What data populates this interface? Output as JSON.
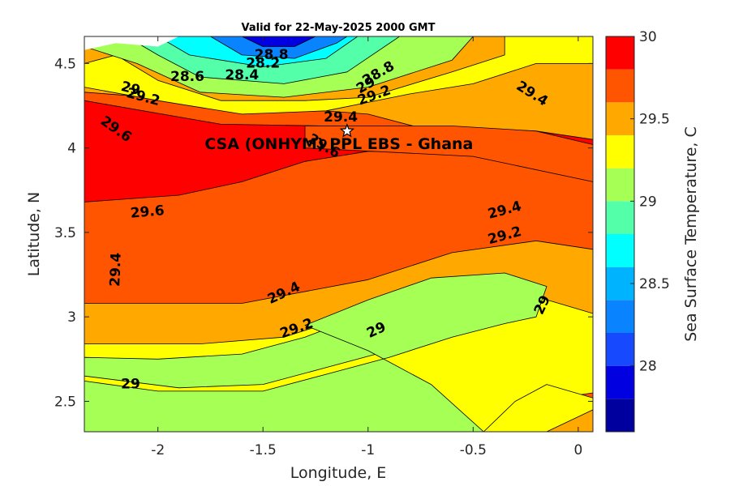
{
  "chart_data": {
    "type": "heatmap",
    "title": "Valid for 22-May-2025 2000 GMT",
    "xlabel": "Longitude, E",
    "ylabel": "Latitude, N",
    "xlim": [
      -2.35,
      0.07
    ],
    "ylim": [
      2.32,
      4.66
    ],
    "x_ticks": [
      -2,
      -1.5,
      -1,
      -0.5,
      0
    ],
    "x_tick_labels": [
      "-2",
      "-1.5",
      "-1",
      "-0.5",
      "0"
    ],
    "y_ticks": [
      2.5,
      3,
      3.5,
      4,
      4.5
    ],
    "y_tick_labels": [
      "2.5",
      "3",
      "3.5",
      "4",
      "4.5"
    ],
    "colorbar": {
      "label": "Sea Surface Temperature, C",
      "range": [
        27.6,
        30.0
      ],
      "step": 0.2,
      "ticks": [
        28,
        28.5,
        29,
        29.5,
        30
      ],
      "tick_labels": [
        "28",
        "28.5",
        "29",
        "29.5",
        "30"
      ],
      "colors": [
        "#00009f",
        "#0000e1",
        "#1749ff",
        "#0a83ff",
        "#00b3ff",
        "#00ffff",
        "#53ffa8",
        "#a5ff55",
        "#ffff00",
        "#ffa800",
        "#ff5400",
        "#ff0000",
        "#b00000"
      ]
    },
    "contour_bands": [
      {
        "level": 29.4,
        "color": "#ffa800",
        "region": [
          [
            -2.35,
            4.66
          ],
          [
            0.07,
            4.66
          ],
          [
            0.07,
            3.8
          ],
          [
            -1.0,
            4.18
          ],
          [
            -2.35,
            4.3
          ]
        ]
      },
      {
        "level": 29.6,
        "color": "#ff5400",
        "region": [
          [
            -2.35,
            4.33
          ],
          [
            -1.0,
            4.2
          ],
          [
            0.07,
            3.85
          ],
          [
            0.07,
            3.38
          ],
          [
            -0.2,
            3.42
          ],
          [
            -0.6,
            3.35
          ],
          [
            -1.0,
            3.2
          ],
          [
            -1.6,
            3.05
          ],
          [
            -2.35,
            3.05
          ]
        ]
      },
      {
        "level": 29.8,
        "color": "#ff0000",
        "region": [
          [
            -2.35,
            4.28
          ],
          [
            -1.7,
            4.14
          ],
          [
            -1.2,
            4.13
          ],
          [
            -0.6,
            4.12
          ],
          [
            -0.2,
            4.1
          ],
          [
            0.07,
            4.05
          ],
          [
            0.07,
            3.8
          ],
          [
            -0.5,
            3.98
          ],
          [
            -1.0,
            3.98
          ],
          [
            -1.3,
            3.92
          ],
          [
            -1.6,
            3.8
          ],
          [
            -1.9,
            3.72
          ],
          [
            -2.35,
            3.68
          ]
        ]
      },
      {
        "level": 29.6,
        "color": "#ff5400",
        "region": [
          [
            -1.3,
            4.13
          ],
          [
            -0.6,
            4.13
          ],
          [
            -0.2,
            4.1
          ],
          [
            0.07,
            4.02
          ],
          [
            0.07,
            3.8
          ],
          [
            -0.5,
            3.95
          ],
          [
            -1.3,
            4.0
          ]
        ]
      },
      {
        "level": 29.2,
        "color": "#ffff00",
        "region": [
          [
            -2.35,
            4.5
          ],
          [
            -2.2,
            4.55
          ],
          [
            -2.0,
            4.4
          ],
          [
            -1.7,
            4.28
          ],
          [
            -1.3,
            4.28
          ],
          [
            -1.0,
            4.3
          ],
          [
            -0.6,
            4.45
          ],
          [
            -0.35,
            4.55
          ],
          [
            -0.35,
            4.66
          ],
          [
            0.07,
            4.66
          ],
          [
            0.07,
            4.5
          ],
          [
            -0.2,
            4.5
          ],
          [
            -0.5,
            4.38
          ],
          [
            -0.8,
            4.32
          ],
          [
            -1.2,
            4.22
          ],
          [
            -1.6,
            4.2
          ],
          [
            -2.0,
            4.28
          ],
          [
            -2.35,
            4.36
          ]
        ]
      },
      {
        "level": 29.0,
        "color": "#a5ff55",
        "region": [
          [
            -2.35,
            4.6
          ],
          [
            -2.1,
            4.5
          ],
          [
            -1.8,
            4.33
          ],
          [
            -1.4,
            4.3
          ],
          [
            -1.0,
            4.36
          ],
          [
            -0.6,
            4.52
          ],
          [
            -0.5,
            4.66
          ],
          [
            -2.35,
            4.66
          ]
        ]
      },
      {
        "level": 28.6,
        "color": "#53ffa8",
        "region": [
          [
            -2.15,
            4.66
          ],
          [
            -2.0,
            4.55
          ],
          [
            -1.8,
            4.42
          ],
          [
            -1.4,
            4.38
          ],
          [
            -1.1,
            4.45
          ],
          [
            -0.85,
            4.66
          ]
        ]
      },
      {
        "level": 28.4,
        "color": "#00ffff",
        "region": [
          [
            -2.0,
            4.66
          ],
          [
            -1.85,
            4.55
          ],
          [
            -1.5,
            4.48
          ],
          [
            -1.2,
            4.53
          ],
          [
            -1.05,
            4.66
          ]
        ]
      },
      {
        "level": 28.2,
        "color": "#0a83ff",
        "region": [
          [
            -1.75,
            4.66
          ],
          [
            -1.6,
            4.55
          ],
          [
            -1.35,
            4.53
          ],
          [
            -1.15,
            4.62
          ],
          [
            -1.1,
            4.66
          ]
        ]
      },
      {
        "level": 28.0,
        "color": "#0000e1",
        "region": [
          [
            -1.6,
            4.66
          ],
          [
            -1.5,
            4.6
          ],
          [
            -1.35,
            4.6
          ],
          [
            -1.25,
            4.66
          ]
        ]
      },
      {
        "level": 29.4,
        "color": "#ffa800",
        "region": [
          [
            -2.35,
            3.08
          ],
          [
            -1.6,
            3.08
          ],
          [
            -1.0,
            3.22
          ],
          [
            -0.6,
            3.38
          ],
          [
            -0.2,
            3.45
          ],
          [
            0.07,
            3.4
          ],
          [
            0.07,
            3.0
          ],
          [
            -0.2,
            3.1
          ],
          [
            -0.5,
            3.16
          ],
          [
            -0.8,
            3.12
          ],
          [
            -1.1,
            2.98
          ],
          [
            -1.4,
            2.86
          ],
          [
            -1.8,
            2.82
          ],
          [
            -2.35,
            2.82
          ]
        ]
      },
      {
        "level": 29.2,
        "color": "#ffff00",
        "region": [
          [
            -2.35,
            2.84
          ],
          [
            -1.8,
            2.84
          ],
          [
            -1.4,
            2.88
          ],
          [
            -1.1,
            3.0
          ],
          [
            -0.8,
            3.15
          ],
          [
            -0.5,
            3.2
          ],
          [
            -0.2,
            3.12
          ],
          [
            0.07,
            3.02
          ],
          [
            0.07,
            2.55
          ],
          [
            -0.2,
            2.5
          ],
          [
            -0.4,
            2.32
          ],
          [
            -2.35,
            2.32
          ]
        ]
      },
      {
        "level": 29.0,
        "color": "#a5ff55",
        "region": [
          [
            -2.35,
            2.65
          ],
          [
            -1.9,
            2.58
          ],
          [
            -1.5,
            2.6
          ],
          [
            -1.2,
            2.7
          ],
          [
            -0.9,
            2.8
          ],
          [
            -0.6,
            2.93
          ],
          [
            -0.3,
            3.04
          ],
          [
            -0.18,
            3.12
          ],
          [
            -0.2,
            3.18
          ],
          [
            -0.4,
            3.2
          ],
          [
            -0.7,
            3.15
          ],
          [
            -1.0,
            3.02
          ],
          [
            -1.3,
            2.88
          ],
          [
            -1.6,
            2.78
          ],
          [
            -2.0,
            2.75
          ],
          [
            -2.35,
            2.76
          ]
        ]
      },
      {
        "level": 29.0,
        "color": "#a5ff55",
        "region": [
          [
            -2.35,
            2.32
          ],
          [
            -2.35,
            2.62
          ],
          [
            -2.0,
            2.56
          ],
          [
            -1.5,
            2.56
          ],
          [
            -1.2,
            2.66
          ],
          [
            -0.9,
            2.76
          ],
          [
            -0.6,
            2.88
          ],
          [
            -0.35,
            2.96
          ],
          [
            -0.2,
            3.0
          ],
          [
            -0.15,
            3.18
          ],
          [
            -0.35,
            3.26
          ],
          [
            -0.7,
            3.23
          ],
          [
            -1.0,
            3.1
          ],
          [
            -1.3,
            2.95
          ],
          [
            -1.0,
            2.8
          ],
          [
            -0.7,
            2.6
          ],
          [
            -0.45,
            2.32
          ]
        ]
      },
      {
        "level": 29.2,
        "color": "#ffff00",
        "region": [
          [
            -0.45,
            2.32
          ],
          [
            -0.3,
            2.5
          ],
          [
            -0.15,
            2.6
          ],
          [
            0.07,
            2.52
          ],
          [
            0.07,
            2.32
          ]
        ]
      },
      {
        "level": 29.4,
        "color": "#ffa800",
        "region": [
          [
            -0.15,
            2.32
          ],
          [
            0.07,
            2.45
          ],
          [
            0.07,
            2.32
          ]
        ]
      }
    ],
    "blank_region": [
      [
        -2.35,
        4.66
      ],
      [
        -2.35,
        4.58
      ],
      [
        -2.2,
        4.62
      ],
      [
        -2.0,
        4.6
      ],
      [
        -1.9,
        4.66
      ]
    ],
    "contour_labels": [
      {
        "text": "28.8",
        "x": -1.46,
        "y": 4.55,
        "angle": 0
      },
      {
        "text": "28.2",
        "x": -1.5,
        "y": 4.5,
        "angle": 0
      },
      {
        "text": "28.6",
        "x": -1.86,
        "y": 4.42,
        "angle": 0
      },
      {
        "text": "28.4",
        "x": -1.6,
        "y": 4.43,
        "angle": 0
      },
      {
        "text": "28.8",
        "x": -0.95,
        "y": 4.44,
        "angle": -30
      },
      {
        "text": "29",
        "x": -1.01,
        "y": 4.37,
        "angle": -30
      },
      {
        "text": "29.2",
        "x": -0.97,
        "y": 4.31,
        "angle": -20
      },
      {
        "text": "29",
        "x": -2.13,
        "y": 4.35,
        "angle": 15
      },
      {
        "text": "29.2",
        "x": -2.07,
        "y": 4.3,
        "angle": 15
      },
      {
        "text": "29.4",
        "x": -1.13,
        "y": 4.18,
        "angle": 0
      },
      {
        "text": "29.4",
        "x": -0.22,
        "y": 4.32,
        "angle": 32
      },
      {
        "text": "29.6",
        "x": -2.2,
        "y": 4.11,
        "angle": 35
      },
      {
        "text": "29.6",
        "x": -1.21,
        "y": 4.01,
        "angle": 30
      },
      {
        "text": "29.6",
        "x": -2.05,
        "y": 3.62,
        "angle": -5
      },
      {
        "text": "29.4",
        "x": -0.35,
        "y": 3.63,
        "angle": -15
      },
      {
        "text": "29.2",
        "x": -0.35,
        "y": 3.48,
        "angle": -15
      },
      {
        "text": "29.4",
        "x": -2.2,
        "y": 3.28,
        "angle": -88
      },
      {
        "text": "29.4",
        "x": -1.4,
        "y": 3.14,
        "angle": -25
      },
      {
        "text": "29.2",
        "x": -1.34,
        "y": 2.93,
        "angle": -20
      },
      {
        "text": "29",
        "x": -0.96,
        "y": 2.92,
        "angle": -25
      },
      {
        "text": "29",
        "x": -0.17,
        "y": 3.07,
        "angle": -65
      },
      {
        "text": "29",
        "x": -2.13,
        "y": 2.6,
        "angle": 0
      }
    ],
    "annotation": {
      "text": "CSA (ONHYM) PPL EBS  - Ghana",
      "x": -1.1,
      "y": 4.1,
      "marker": "star"
    }
  }
}
